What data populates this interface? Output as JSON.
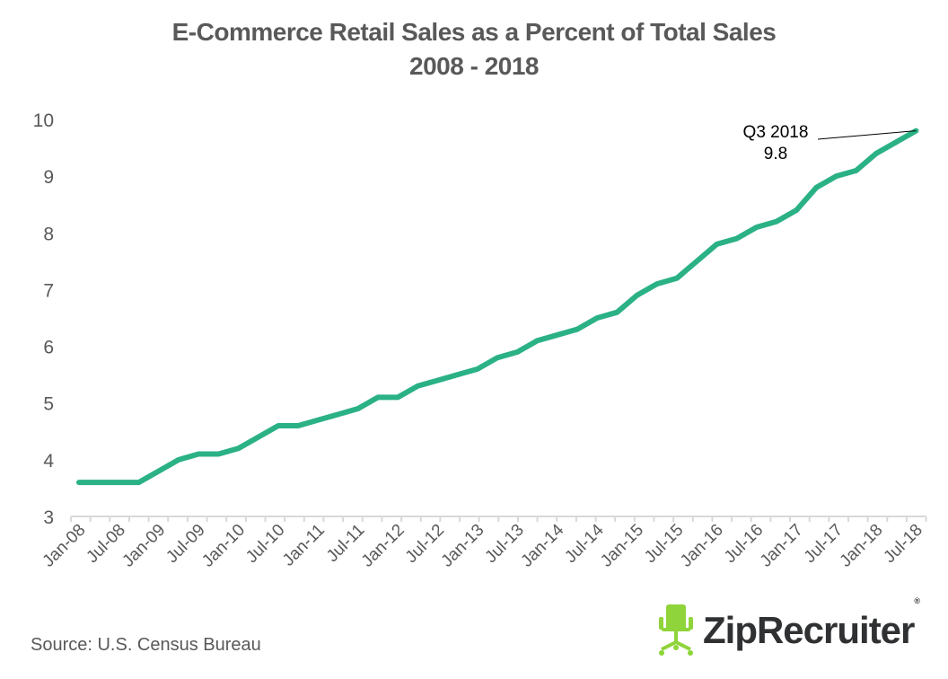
{
  "chart_data": {
    "type": "line",
    "title": "E-Commerce Retail Sales as a Percent of Total Sales",
    "subtitle": "2008 - 2018",
    "xlabel": "",
    "ylabel": "",
    "ylim": [
      3,
      10
    ],
    "yticks": [
      3,
      4,
      5,
      6,
      7,
      8,
      9,
      10
    ],
    "grid": false,
    "legend": "none",
    "x_tick_labels": [
      "Jan-08",
      "Jul-08",
      "Jan-09",
      "Jul-09",
      "Jan-10",
      "Jul-10",
      "Jan-11",
      "Jul-11",
      "Jan-12",
      "Jul-12",
      "Jan-13",
      "Jul-13",
      "Jan-14",
      "Jul-14",
      "Jan-15",
      "Jul-15",
      "Jan-16",
      "Jul-16",
      "Jan-17",
      "Jul-17",
      "Jan-18",
      "Jul-18"
    ],
    "x": [
      "Q1 2008",
      "Q2 2008",
      "Q3 2008",
      "Q4 2008",
      "Q1 2009",
      "Q2 2009",
      "Q3 2009",
      "Q4 2009",
      "Q1 2010",
      "Q2 2010",
      "Q3 2010",
      "Q4 2010",
      "Q1 2011",
      "Q2 2011",
      "Q3 2011",
      "Q4 2011",
      "Q1 2012",
      "Q2 2012",
      "Q3 2012",
      "Q4 2012",
      "Q1 2013",
      "Q2 2013",
      "Q3 2013",
      "Q4 2013",
      "Q1 2014",
      "Q2 2014",
      "Q3 2014",
      "Q4 2014",
      "Q1 2015",
      "Q2 2015",
      "Q3 2015",
      "Q4 2015",
      "Q1 2016",
      "Q2 2016",
      "Q3 2016",
      "Q4 2016",
      "Q1 2017",
      "Q2 2017",
      "Q3 2017",
      "Q4 2017",
      "Q1 2018",
      "Q2 2018",
      "Q3 2018"
    ],
    "series": [
      {
        "name": "E-Commerce % of Total Sales",
        "color": "#2bb186",
        "values": [
          3.6,
          3.6,
          3.6,
          3.6,
          3.8,
          4.0,
          4.1,
          4.1,
          4.2,
          4.4,
          4.6,
          4.6,
          4.7,
          4.8,
          4.9,
          5.1,
          5.1,
          5.3,
          5.4,
          5.5,
          5.6,
          5.8,
          5.9,
          6.1,
          6.2,
          6.3,
          6.5,
          6.6,
          6.9,
          7.1,
          7.2,
          7.5,
          7.8,
          7.9,
          8.1,
          8.2,
          8.4,
          8.8,
          9.0,
          9.1,
          9.4,
          9.6,
          9.8
        ]
      }
    ],
    "annotations": [
      {
        "label": "Q3 2018",
        "value_text": "9.8",
        "x": "Q3 2018",
        "y": 9.8
      }
    ]
  },
  "footer": {
    "source": "Source: U.S. Census Bureau"
  },
  "brand": {
    "logo_text": "ZipRecruiter",
    "logo_mark": "®",
    "logo_icon": "office-chair-icon",
    "logo_color": "#8fd43a"
  },
  "colors": {
    "text": "#595959",
    "axis": "#d9d9d9",
    "line": "#2bb186"
  }
}
